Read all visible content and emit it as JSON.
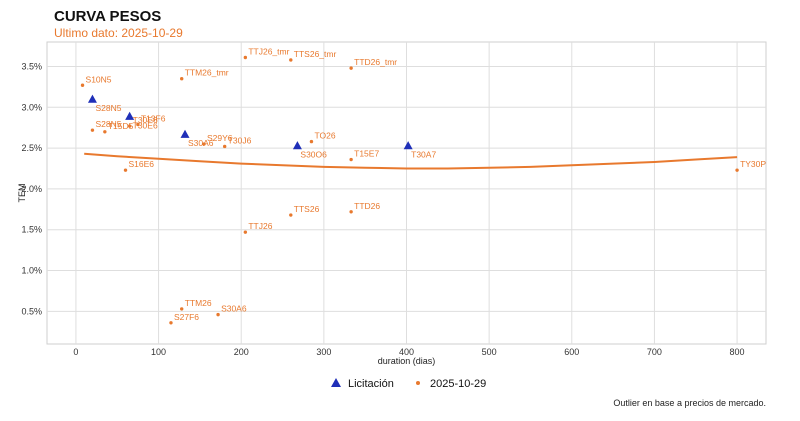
{
  "title": "CURVA PESOS",
  "subtitle": "Ultimo dato: 2025-10-29",
  "footnote": "Outlier en base a precios de mercado.",
  "colors": {
    "licitacion": "#1f2fb8",
    "market": "#e8792e",
    "curve": "#e8792e",
    "grid": "#dedede"
  },
  "chart_data": {
    "type": "scatter",
    "xlabel": "duration (dias)",
    "ylabel": "TEM",
    "xlim": [
      -35,
      835
    ],
    "ylim": [
      0.1,
      3.8
    ],
    "xticks": [
      0,
      100,
      200,
      300,
      400,
      500,
      600,
      700,
      800
    ],
    "yticks": [
      0.5,
      1.0,
      1.5,
      2.0,
      2.5,
      3.0,
      3.5
    ],
    "ytick_labels": [
      "0.5%",
      "1.0%",
      "1.5%",
      "2.0%",
      "2.5%",
      "3.0%",
      "3.5%"
    ],
    "grid": true,
    "legend_position": "bottom",
    "series": [
      {
        "name": "Licitación",
        "marker": "triangle",
        "points": [
          {
            "label": "S28N5",
            "x": 20,
            "y": 3.1
          },
          {
            "label": "T30E6",
            "x": 65,
            "y": 2.89
          },
          {
            "label": "S30A6",
            "x": 132,
            "y": 2.67
          },
          {
            "label": "S30O6",
            "x": 268,
            "y": 2.53
          },
          {
            "label": "T30A7",
            "x": 402,
            "y": 2.53
          }
        ]
      },
      {
        "name": "2025-10-29",
        "marker": "dot",
        "points": [
          {
            "label": "S10N5",
            "x": 8,
            "y": 3.27
          },
          {
            "label": "S28N5",
            "x": 20,
            "y": 2.72
          },
          {
            "label": "T15D5",
            "x": 35,
            "y": 2.7
          },
          {
            "label": "T30E6",
            "x": 65,
            "y": 2.77
          },
          {
            "label": "T13F6",
            "x": 75,
            "y": 2.79
          },
          {
            "label": "S16E6",
            "x": 60,
            "y": 2.23
          },
          {
            "label": "TTM26_tmr",
            "x": 128,
            "y": 3.35
          },
          {
            "label": "TTJ26_tmr",
            "x": 205,
            "y": 3.61
          },
          {
            "label": "TTS26_tmr",
            "x": 260,
            "y": 3.58
          },
          {
            "label": "TTD26_tmr",
            "x": 333,
            "y": 3.48
          },
          {
            "label": "S29Y6",
            "x": 155,
            "y": 2.55
          },
          {
            "label": "T30J6",
            "x": 180,
            "y": 2.52
          },
          {
            "label": "TO26",
            "x": 285,
            "y": 2.58
          },
          {
            "label": "T15E7",
            "x": 333,
            "y": 2.36
          },
          {
            "label": "TTS26",
            "x": 260,
            "y": 1.68
          },
          {
            "label": "TTD26",
            "x": 333,
            "y": 1.72
          },
          {
            "label": "TTJ26",
            "x": 205,
            "y": 1.47
          },
          {
            "label": "TTM26",
            "x": 128,
            "y": 0.53
          },
          {
            "label": "S27F6",
            "x": 115,
            "y": 0.36
          },
          {
            "label": "S30A6",
            "x": 172,
            "y": 0.46
          },
          {
            "label": "TY30P",
            "x": 800,
            "y": 2.23
          }
        ]
      }
    ],
    "fit_curve": {
      "x": [
        10,
        50,
        100,
        150,
        200,
        250,
        300,
        350,
        400,
        450,
        500,
        550,
        600,
        650,
        700,
        750,
        800
      ],
      "y": [
        2.43,
        2.4,
        2.37,
        2.34,
        2.31,
        2.29,
        2.27,
        2.26,
        2.25,
        2.25,
        2.26,
        2.27,
        2.29,
        2.31,
        2.33,
        2.36,
        2.39
      ]
    }
  }
}
